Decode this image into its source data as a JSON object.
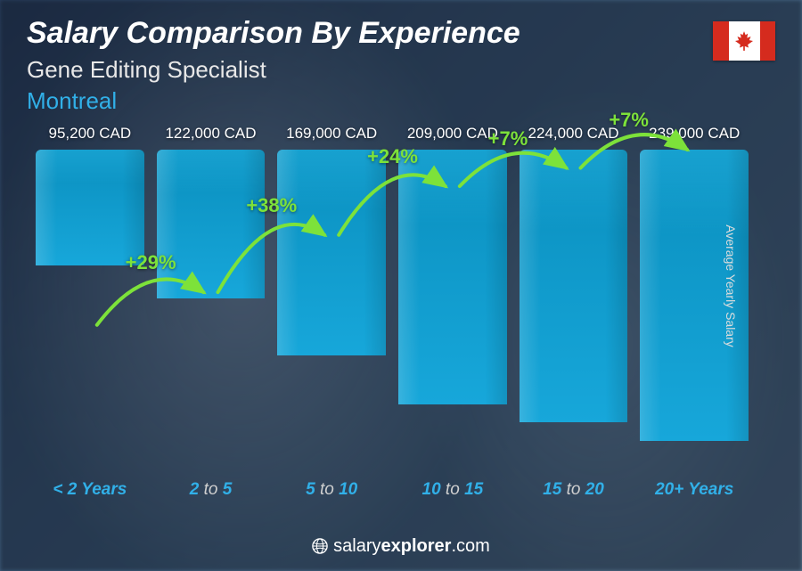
{
  "header": {
    "title": "Salary Comparison By Experience",
    "subtitle": "Gene Editing Specialist",
    "location": "Montreal"
  },
  "flag": {
    "country": "Canada",
    "band_color": "#d52b1e",
    "bg_color": "#ffffff"
  },
  "chart": {
    "type": "bar",
    "yaxis_label": "Average Yearly Salary",
    "bar_fill_top": "#0a8fbe",
    "bar_fill_bottom": "#17a7da",
    "bar_highlight": "#34c6f4",
    "value_color": "#ffffff",
    "label_color": "#31b0e8",
    "label_dim_color": "#d0d0d0",
    "arc_color": "#7de23a",
    "max_value": 239000,
    "bars": [
      {
        "range_a": "< 2",
        "range_b": "Years",
        "value": 95200,
        "value_label": "95,200 CAD",
        "pct": null
      },
      {
        "range_a": "2",
        "range_mid": "to",
        "range_b": "5",
        "value": 122000,
        "value_label": "122,000 CAD",
        "pct": "+29%"
      },
      {
        "range_a": "5",
        "range_mid": "to",
        "range_b": "10",
        "value": 169000,
        "value_label": "169,000 CAD",
        "pct": "+38%"
      },
      {
        "range_a": "10",
        "range_mid": "to",
        "range_b": "15",
        "value": 209000,
        "value_label": "209,000 CAD",
        "pct": "+24%"
      },
      {
        "range_a": "15",
        "range_mid": "to",
        "range_b": "20",
        "value": 224000,
        "value_label": "224,000 CAD",
        "pct": "+7%"
      },
      {
        "range_a": "20+",
        "range_b": "Years",
        "value": 239000,
        "value_label": "239,000 CAD",
        "pct": "+7%"
      }
    ]
  },
  "footer": {
    "brand_a": "salary",
    "brand_b": "explorer",
    "tld": ".com"
  }
}
